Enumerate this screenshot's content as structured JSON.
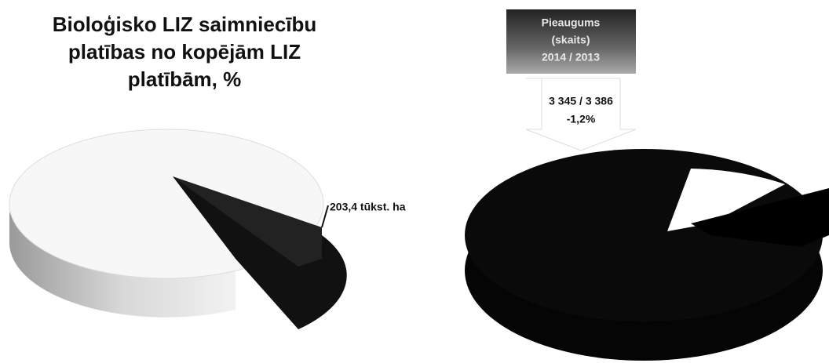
{
  "title": {
    "lines": [
      "Bioloģisko LIZ saimniecību",
      "platības no kopējām LIZ",
      "platībām, %"
    ]
  },
  "left_pie": {
    "label": "203,4 tūkst. ha"
  },
  "right_pie": {
    "box_lines": [
      "Pieaugums",
      "(skaits)",
      "2014 / 2013"
    ],
    "callout_lines": [
      "3 345 / 3 386",
      "-1,2%"
    ]
  }
}
